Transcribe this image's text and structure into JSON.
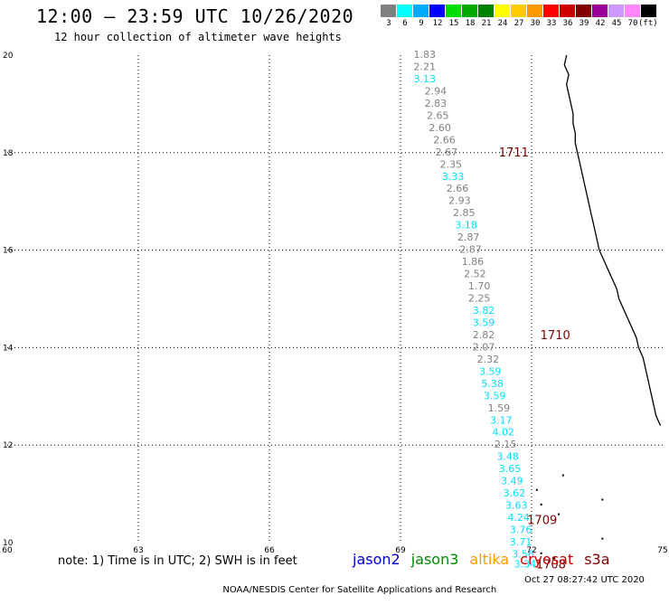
{
  "header": {
    "title": "12:00 – 23:59 UTC 10/26/2020",
    "subtitle": "12 hour collection of altimeter wave heights"
  },
  "legend": {
    "unit": "(ft)",
    "bins": [
      {
        "label": "3",
        "color": "#808080"
      },
      {
        "label": "6",
        "color": "#00ffff"
      },
      {
        "label": "9",
        "color": "#00aaff"
      },
      {
        "label": "12",
        "color": "#0000ff"
      },
      {
        "label": "15",
        "color": "#00dd00"
      },
      {
        "label": "18",
        "color": "#00aa00"
      },
      {
        "label": "21",
        "color": "#008000"
      },
      {
        "label": "24",
        "color": "#ffff00"
      },
      {
        "label": "27",
        "color": "#ffcc00"
      },
      {
        "label": "30",
        "color": "#ff9900"
      },
      {
        "label": "33",
        "color": "#ff0000"
      },
      {
        "label": "36",
        "color": "#cc0000"
      },
      {
        "label": "39",
        "color": "#800000"
      },
      {
        "label": "42",
        "color": "#990099"
      },
      {
        "label": "45",
        "color": "#cc99ff"
      },
      {
        "label": "70",
        "color": "#ff88ff"
      },
      {
        "label": "",
        "color": "#000000"
      }
    ]
  },
  "map": {
    "lon_ticks": [
      "60",
      "63",
      "66",
      "69",
      "72",
      "75"
    ],
    "lat_ticks": [
      "10",
      "12",
      "14",
      "16",
      "18",
      "20"
    ],
    "gray_color": "#808080",
    "cyan_color": "#00e0ff",
    "track_label_color": "#800000",
    "observations": [
      {
        "lat": 20.0,
        "lon": 69.3,
        "v": "1.83",
        "c": "gray"
      },
      {
        "lat": 19.75,
        "lon": 69.3,
        "v": "2.21",
        "c": "gray"
      },
      {
        "lat": 19.5,
        "lon": 69.3,
        "v": "3.13",
        "c": "cyan"
      },
      {
        "lat": 19.25,
        "lon": 69.55,
        "v": "2.94",
        "c": "gray"
      },
      {
        "lat": 19.0,
        "lon": 69.55,
        "v": "2.83",
        "c": "gray"
      },
      {
        "lat": 18.75,
        "lon": 69.6,
        "v": "2.65",
        "c": "gray"
      },
      {
        "lat": 18.5,
        "lon": 69.65,
        "v": "2.60",
        "c": "gray"
      },
      {
        "lat": 18.25,
        "lon": 69.75,
        "v": "2.66",
        "c": "gray"
      },
      {
        "lat": 18.0,
        "lon": 69.8,
        "v": "2.67",
        "c": "gray"
      },
      {
        "lat": 17.75,
        "lon": 69.9,
        "v": "2.35",
        "c": "gray"
      },
      {
        "lat": 17.5,
        "lon": 69.95,
        "v": "3.33",
        "c": "cyan"
      },
      {
        "lat": 17.25,
        "lon": 70.05,
        "v": "2.66",
        "c": "gray"
      },
      {
        "lat": 17.0,
        "lon": 70.1,
        "v": "2.93",
        "c": "gray"
      },
      {
        "lat": 16.75,
        "lon": 70.2,
        "v": "2.85",
        "c": "gray"
      },
      {
        "lat": 16.5,
        "lon": 70.25,
        "v": "3.18",
        "c": "cyan"
      },
      {
        "lat": 16.25,
        "lon": 70.3,
        "v": "2.87",
        "c": "gray"
      },
      {
        "lat": 16.0,
        "lon": 70.35,
        "v": "2.87",
        "c": "gray"
      },
      {
        "lat": 15.75,
        "lon": 70.4,
        "v": "1.86",
        "c": "gray"
      },
      {
        "lat": 15.5,
        "lon": 70.45,
        "v": "2.52",
        "c": "gray"
      },
      {
        "lat": 15.25,
        "lon": 70.55,
        "v": "1.70",
        "c": "gray"
      },
      {
        "lat": 15.0,
        "lon": 70.55,
        "v": "2.25",
        "c": "gray"
      },
      {
        "lat": 14.75,
        "lon": 70.65,
        "v": "3.82",
        "c": "cyan"
      },
      {
        "lat": 14.5,
        "lon": 70.65,
        "v": "3.59",
        "c": "cyan"
      },
      {
        "lat": 14.25,
        "lon": 70.65,
        "v": "2.82",
        "c": "gray"
      },
      {
        "lat": 14.0,
        "lon": 70.65,
        "v": "2.07",
        "c": "gray"
      },
      {
        "lat": 13.75,
        "lon": 70.75,
        "v": "2.32",
        "c": "gray"
      },
      {
        "lat": 13.5,
        "lon": 70.8,
        "v": "3.59",
        "c": "cyan"
      },
      {
        "lat": 13.25,
        "lon": 70.85,
        "v": "5.38",
        "c": "cyan"
      },
      {
        "lat": 13.0,
        "lon": 70.9,
        "v": "3.59",
        "c": "cyan"
      },
      {
        "lat": 12.75,
        "lon": 71.0,
        "v": "1.59",
        "c": "gray"
      },
      {
        "lat": 12.5,
        "lon": 71.05,
        "v": "3.17",
        "c": "cyan"
      },
      {
        "lat": 12.25,
        "lon": 71.1,
        "v": "4.02",
        "c": "cyan"
      },
      {
        "lat": 12.0,
        "lon": 71.15,
        "v": "2.15",
        "c": "gray"
      },
      {
        "lat": 11.75,
        "lon": 71.2,
        "v": "3.48",
        "c": "cyan"
      },
      {
        "lat": 11.5,
        "lon": 71.25,
        "v": "3.65",
        "c": "cyan"
      },
      {
        "lat": 11.25,
        "lon": 71.3,
        "v": "3.49",
        "c": "cyan"
      },
      {
        "lat": 11.0,
        "lon": 71.35,
        "v": "3.62",
        "c": "cyan"
      },
      {
        "lat": 10.75,
        "lon": 71.4,
        "v": "3.63",
        "c": "cyan"
      },
      {
        "lat": 10.5,
        "lon": 71.45,
        "v": "4.24",
        "c": "cyan"
      },
      {
        "lat": 10.25,
        "lon": 71.5,
        "v": "3.76",
        "c": "cyan"
      },
      {
        "lat": 10.0,
        "lon": 71.5,
        "v": "3.71",
        "c": "cyan"
      },
      {
        "lat": 9.75,
        "lon": 71.55,
        "v": "3.56",
        "c": "cyan"
      },
      {
        "lat": 9.55,
        "lon": 71.6,
        "v": "3.34",
        "c": "cyan"
      }
    ],
    "track_labels": [
      {
        "lat": 18.0,
        "lon": 71.25,
        "text": "1711"
      },
      {
        "lat": 14.25,
        "lon": 72.2,
        "text": "1710"
      },
      {
        "lat": 10.45,
        "lon": 71.9,
        "text": "1709"
      },
      {
        "lat": 9.55,
        "lon": 72.1,
        "text": "1708"
      }
    ]
  },
  "footer": {
    "note": "note: 1) Time is in UTC; 2) SWH is in feet",
    "satellites": [
      {
        "name": "jason2",
        "color": "#0000cc"
      },
      {
        "name": "jason3",
        "color": "#008800"
      },
      {
        "name": "altika",
        "color": "#ff9900"
      },
      {
        "name": "cryosat",
        "color": "#cc0000"
      },
      {
        "name": "s3a",
        "color": "#800000"
      }
    ],
    "credit": "NOAA/NESDIS Center for Satellite Applications and Research",
    "timestamp": "Oct 27 08:27:42 UTC 2020"
  }
}
